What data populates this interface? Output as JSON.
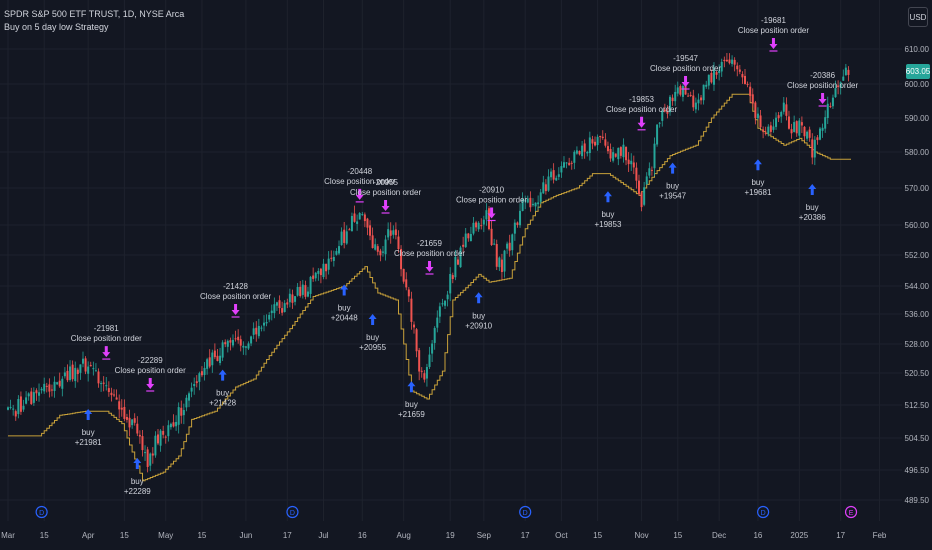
{
  "header": {
    "symbol_line": "SPDR S&P 500 ETF TRUST, 1D, NYSE Arca",
    "strategy_line": "Buy on 5 day low Strategy"
  },
  "currency_button": "USD",
  "last_price": "603.05",
  "colors": {
    "background": "#131722",
    "up": "#26a69a",
    "down": "#ef5350",
    "stop_line": "#c8a13a",
    "buy_marker": "#2962ff",
    "sell_marker": "#e040fb",
    "event_marker": "#2962ff"
  },
  "chart_data": {
    "type": "candlestick",
    "y_axis": {
      "ticks": [
        "610.00",
        "600.00",
        "590.00",
        "580.00",
        "570.00",
        "560.00",
        "552.00",
        "544.00",
        "536.00",
        "528.00",
        "520.50",
        "512.50",
        "504.50",
        "496.50",
        "489.50"
      ],
      "tick_values": [
        610,
        600,
        590,
        580,
        570,
        560,
        552,
        544,
        536,
        528,
        520.5,
        512.5,
        504.5,
        496.5,
        489.5
      ]
    },
    "x_axis": {
      "ticks": [
        {
          "label": "Mar",
          "day": 0
        },
        {
          "label": "15",
          "day": 14
        },
        {
          "label": "Apr",
          "day": 31
        },
        {
          "label": "15",
          "day": 45
        },
        {
          "label": "May",
          "day": 61
        },
        {
          "label": "15",
          "day": 75
        },
        {
          "label": "Jun",
          "day": 92
        },
        {
          "label": "17",
          "day": 108
        },
        {
          "label": "Jul",
          "day": 122
        },
        {
          "label": "16",
          "day": 137
        },
        {
          "label": "Aug",
          "day": 153
        },
        {
          "label": "19",
          "day": 171
        },
        {
          "label": "Sep",
          "day": 184
        },
        {
          "label": "17",
          "day": 200
        },
        {
          "label": "Oct",
          "day": 214
        },
        {
          "label": "15",
          "day": 228
        },
        {
          "label": "Nov",
          "day": 245
        },
        {
          "label": "15",
          "day": 259
        },
        {
          "label": "Dec",
          "day": 275
        },
        {
          "label": "16",
          "day": 290
        },
        {
          "label": "2025",
          "day": 306
        },
        {
          "label": "17",
          "day": 322
        },
        {
          "label": "Feb",
          "day": 337
        }
      ]
    },
    "price_path": [
      [
        0,
        511
      ],
      [
        5,
        512
      ],
      [
        10,
        514
      ],
      [
        15,
        516
      ],
      [
        20,
        519
      ],
      [
        27,
        521
      ],
      [
        31,
        523
      ],
      [
        34,
        520
      ],
      [
        37,
        518
      ],
      [
        40,
        516
      ],
      [
        43,
        513
      ],
      [
        46,
        510
      ],
      [
        49,
        506
      ],
      [
        52,
        502
      ],
      [
        54,
        499
      ],
      [
        57,
        503
      ],
      [
        60,
        506
      ],
      [
        63,
        508
      ],
      [
        67,
        512
      ],
      [
        71,
        517
      ],
      [
        75,
        521
      ],
      [
        79,
        524
      ],
      [
        83,
        527
      ],
      [
        87,
        529
      ],
      [
        90,
        527
      ],
      [
        92,
        526
      ],
      [
        95,
        530
      ],
      [
        99,
        535
      ],
      [
        103,
        537
      ],
      [
        107,
        539
      ],
      [
        111,
        541
      ],
      [
        115,
        543
      ],
      [
        119,
        546
      ],
      [
        123,
        550
      ],
      [
        127,
        554
      ],
      [
        131,
        558
      ],
      [
        134,
        562
      ],
      [
        137,
        564
      ],
      [
        139,
        561
      ],
      [
        141,
        556
      ],
      [
        143,
        552
      ],
      [
        146,
        556
      ],
      [
        149,
        559
      ],
      [
        151,
        553
      ],
      [
        153,
        546
      ],
      [
        155,
        540
      ],
      [
        157,
        531
      ],
      [
        159,
        522
      ],
      [
        161,
        519
      ],
      [
        163,
        526
      ],
      [
        166,
        534
      ],
      [
        169,
        541
      ],
      [
        172,
        548
      ],
      [
        175,
        553
      ],
      [
        178,
        557
      ],
      [
        182,
        560
      ],
      [
        185,
        563
      ],
      [
        187,
        556
      ],
      [
        189,
        551
      ],
      [
        191,
        549
      ],
      [
        193,
        553
      ],
      [
        196,
        560
      ],
      [
        199,
        565
      ],
      [
        202,
        566
      ],
      [
        205,
        568
      ],
      [
        208,
        571
      ],
      [
        211,
        573
      ],
      [
        214,
        575
      ],
      [
        217,
        578
      ],
      [
        220,
        579
      ],
      [
        224,
        582
      ],
      [
        228,
        584
      ],
      [
        231,
        581
      ],
      [
        234,
        579
      ],
      [
        238,
        580
      ],
      [
        241,
        578
      ],
      [
        243,
        571
      ],
      [
        245,
        567
      ],
      [
        247,
        572
      ],
      [
        249,
        577
      ],
      [
        251,
        588
      ],
      [
        254,
        591
      ],
      [
        257,
        597
      ],
      [
        260,
        599
      ],
      [
        263,
        597
      ],
      [
        266,
        594
      ],
      [
        269,
        599
      ],
      [
        272,
        602
      ],
      [
        275,
        606
      ],
      [
        278,
        605
      ],
      [
        281,
        606
      ],
      [
        284,
        603
      ],
      [
        286,
        600
      ],
      [
        288,
        593
      ],
      [
        290,
        591
      ],
      [
        292,
        584
      ],
      [
        294,
        586
      ],
      [
        297,
        590
      ],
      [
        300,
        593
      ],
      [
        303,
        587
      ],
      [
        306,
        588
      ],
      [
        309,
        584
      ],
      [
        311,
        580
      ],
      [
        313,
        584
      ],
      [
        316,
        590
      ],
      [
        319,
        596
      ],
      [
        322,
        601
      ],
      [
        325,
        604
      ]
    ],
    "stop_line_path": [
      [
        0,
        505
      ],
      [
        12,
        505
      ],
      [
        20,
        510
      ],
      [
        30,
        511
      ],
      [
        38,
        511
      ],
      [
        44,
        508
      ],
      [
        48,
        501
      ],
      [
        52,
        494
      ],
      [
        60,
        496
      ],
      [
        66,
        500
      ],
      [
        71,
        509
      ],
      [
        80,
        511
      ],
      [
        88,
        517
      ],
      [
        95,
        519
      ],
      [
        101,
        525
      ],
      [
        110,
        533
      ],
      [
        118,
        541
      ],
      [
        130,
        544
      ],
      [
        138,
        549
      ],
      [
        143,
        542
      ],
      [
        150,
        540
      ],
      [
        156,
        516
      ],
      [
        162,
        514
      ],
      [
        168,
        521
      ],
      [
        172,
        540
      ],
      [
        182,
        547
      ],
      [
        186,
        545
      ],
      [
        194,
        546
      ],
      [
        200,
        559
      ],
      [
        206,
        566
      ],
      [
        212,
        568
      ],
      [
        220,
        570
      ],
      [
        226,
        574
      ],
      [
        232,
        574
      ],
      [
        236,
        572
      ],
      [
        244,
        568
      ],
      [
        250,
        574
      ],
      [
        256,
        579
      ],
      [
        266,
        582
      ],
      [
        272,
        590
      ],
      [
        280,
        597
      ],
      [
        286,
        597
      ],
      [
        290,
        587
      ],
      [
        300,
        582
      ],
      [
        306,
        584
      ],
      [
        312,
        580
      ],
      [
        318,
        578
      ],
      [
        325,
        578
      ]
    ],
    "trades": [
      {
        "kind": "buy",
        "day": 31,
        "price": 515,
        "label": "buy",
        "qty": "+21981"
      },
      {
        "kind": "close",
        "day": 38,
        "price": 521,
        "label": "Close position order",
        "qty": "-21981"
      },
      {
        "kind": "buy",
        "day": 50,
        "price": 503,
        "label": "buy",
        "qty": "+22289"
      },
      {
        "kind": "close",
        "day": 55,
        "price": 513,
        "label": "Close position order",
        "qty": "-22289"
      },
      {
        "kind": "buy",
        "day": 83,
        "price": 525,
        "label": "buy",
        "qty": "+21428"
      },
      {
        "kind": "close",
        "day": 88,
        "price": 532,
        "label": "Close position order",
        "qty": "-21428"
      },
      {
        "kind": "buy",
        "day": 130,
        "price": 548,
        "label": "buy",
        "qty": "+20448"
      },
      {
        "kind": "close",
        "day": 136,
        "price": 563,
        "label": "Close position order",
        "qty": "-20448"
      },
      {
        "kind": "buy",
        "day": 141,
        "price": 540,
        "label": "buy",
        "qty": "+20955"
      },
      {
        "kind": "close",
        "day": 146,
        "price": 560,
        "label": "Close position order",
        "qty": "-20955"
      },
      {
        "kind": "buy",
        "day": 156,
        "price": 522,
        "label": "buy",
        "qty": "+21659"
      },
      {
        "kind": "close",
        "day": 163,
        "price": 544,
        "label": "Close position order",
        "qty": "-21659"
      },
      {
        "kind": "buy",
        "day": 182,
        "price": 546,
        "label": "buy",
        "qty": "+20910"
      },
      {
        "kind": "close",
        "day": 187,
        "price": 558,
        "label": "Close position order",
        "qty": "-20910"
      },
      {
        "kind": "buy",
        "day": 232,
        "price": 573,
        "label": "buy",
        "qty": "+19853"
      },
      {
        "kind": "close",
        "day": 245,
        "price": 583,
        "label": "Close position order",
        "qty": "-19853"
      },
      {
        "kind": "buy",
        "day": 257,
        "price": 581,
        "label": "buy",
        "qty": "+19547"
      },
      {
        "kind": "close",
        "day": 262,
        "price": 595,
        "label": "Close position order",
        "qty": "-19547"
      },
      {
        "kind": "buy",
        "day": 290,
        "price": 582,
        "label": "buy",
        "qty": "+19681"
      },
      {
        "kind": "close",
        "day": 296,
        "price": 606,
        "label": "Close position order",
        "qty": "-19681"
      },
      {
        "kind": "buy",
        "day": 311,
        "price": 575,
        "label": "buy",
        "qty": "+20386"
      },
      {
        "kind": "close",
        "day": 315,
        "price": 590,
        "label": "Close position order",
        "qty": "-20386"
      }
    ],
    "event_markers": [
      {
        "day": 13,
        "symbol": "D"
      },
      {
        "day": 110,
        "symbol": "D"
      },
      {
        "day": 200,
        "symbol": "D"
      },
      {
        "day": 292,
        "symbol": "D"
      },
      {
        "day": 326,
        "symbol": "E"
      }
    ]
  }
}
